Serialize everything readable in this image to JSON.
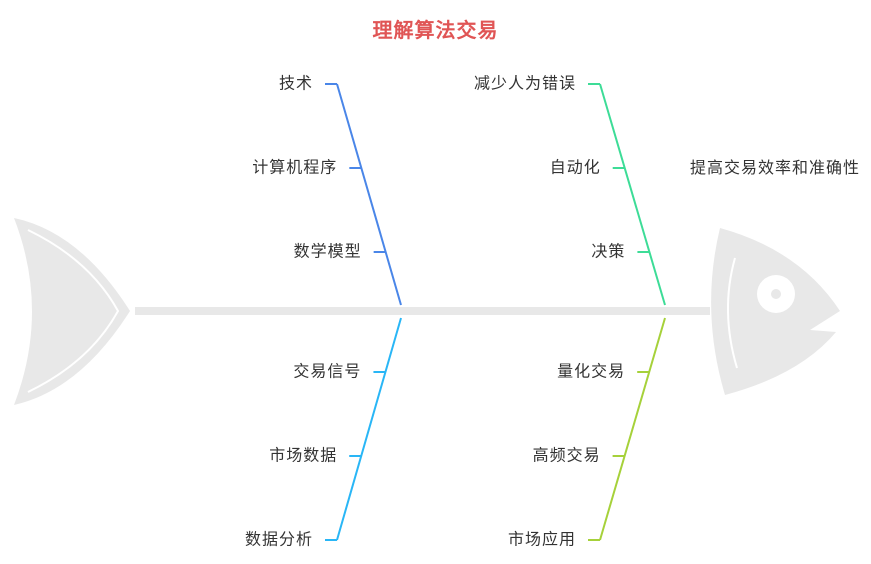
{
  "title": "理解算法交易",
  "head": {
    "label": "提高交易效率和准确性"
  },
  "branches": [
    {
      "position": "top-left",
      "color": "#4a86e8",
      "items": [
        "技术",
        "计算机程序",
        "数学模型"
      ]
    },
    {
      "position": "top-right",
      "color": "#3ddc97",
      "items": [
        "减少人为错误",
        "自动化",
        "决策"
      ]
    },
    {
      "position": "bottom-left",
      "color": "#29b6f6",
      "items": [
        "交易信号",
        "市场数据",
        "数据分析"
      ]
    },
    {
      "position": "bottom-right",
      "color": "#a6d13a",
      "items": [
        "量化交易",
        "高频交易",
        "市场应用"
      ]
    }
  ]
}
